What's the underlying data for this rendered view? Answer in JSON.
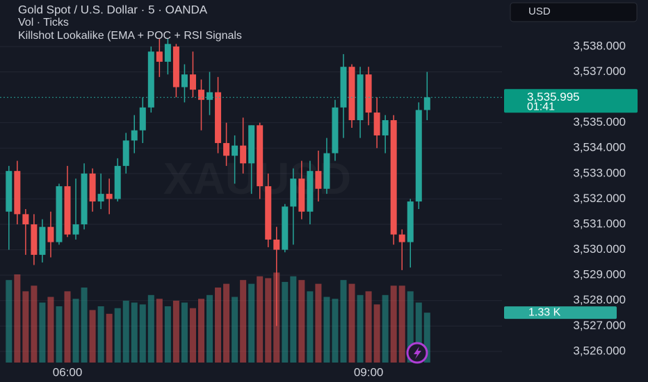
{
  "chart_data": {
    "type": "candlestick",
    "title": "Gold Spot / U.S. Dollar · 5 · OANDA",
    "indicators": [
      "Vol · Ticks",
      "Killshot Lookalike (EMA + POC + RSI Signals"
    ],
    "watermark": "XAUUSD",
    "currency": "USD",
    "categories": [
      null,
      null,
      null,
      null,
      null,
      null,
      null,
      "06:00",
      null,
      null,
      null,
      null,
      null,
      null,
      null,
      null,
      null,
      null,
      null,
      null,
      null,
      null,
      null,
      null,
      null,
      null,
      null,
      null,
      null,
      null,
      null,
      null,
      null,
      null,
      null,
      null,
      null,
      null,
      null,
      null,
      null,
      null,
      null,
      "09:00",
      null,
      null,
      null,
      null,
      null,
      null,
      null
    ],
    "open": [
      3531.5,
      3533.1,
      3531.4,
      3531.0,
      3529.8,
      3530.9,
      3530.3,
      3532.5,
      3530.6,
      3531.0,
      3533.0,
      3531.9,
      3532.2,
      3532.0,
      3533.3,
      3534.3,
      3534.7,
      3535.6,
      3537.8,
      3537.4,
      3538.0,
      3536.4,
      3536.9,
      3536.3,
      3535.9,
      3536.2,
      3534.2,
      3533.7,
      3534.1,
      3533.4,
      3534.9,
      3532.5,
      3530.4,
      3530.0,
      3531.7,
      3532.8,
      3531.5,
      3533.1,
      3532.4,
      3533.8,
      3535.6,
      3537.2,
      3535.1,
      3536.9,
      3535.4,
      3534.5,
      3535.1,
      3530.6,
      3530.3,
      3531.9,
      3535.5
    ],
    "high": [
      3533.3,
      3533.5,
      3531.6,
      3531.4,
      3531.2,
      3531.5,
      3532.6,
      3533.3,
      3532.8,
      3533.4,
      3533.2,
      3533.0,
      3532.8,
      3533.6,
      3534.6,
      3535.3,
      3536.0,
      3538.0,
      3538.3,
      3538.3,
      3538.1,
      3537.3,
      3537.8,
      3536.7,
      3537.0,
      3536.8,
      3535.0,
      3534.5,
      3535.2,
      3534.9,
      3535.0,
      3533.0,
      3530.9,
      3531.8,
      3533.2,
      3533.5,
      3533.5,
      3533.9,
      3534.4,
      3535.9,
      3537.7,
      3537.3,
      3537.2,
      3537.2,
      3536.0,
      3535.3,
      3535.3,
      3530.8,
      3532.0,
      3535.8,
      3537.0
    ],
    "low": [
      3530.0,
      3531.0,
      3529.8,
      3529.4,
      3529.5,
      3529.7,
      3530.2,
      3530.5,
      3530.4,
      3530.8,
      3531.5,
      3531.6,
      3531.4,
      3531.9,
      3533.0,
      3533.8,
      3534.2,
      3535.4,
      3536.8,
      3536.9,
      3536.0,
      3535.8,
      3536.0,
      3534.7,
      3535.3,
      3533.8,
      3533.3,
      3532.6,
      3533.0,
      3532.2,
      3532.0,
      3530.1,
      3527.0,
      3529.9,
      3530.2,
      3531.2,
      3531.0,
      3531.9,
      3532.2,
      3533.5,
      3534.4,
      3534.8,
      3534.4,
      3534.9,
      3534.0,
      3533.8,
      3530.2,
      3529.2,
      3529.3,
      3531.6,
      3535.1
    ],
    "close": [
      3533.1,
      3531.4,
      3531.0,
      3529.8,
      3530.9,
      3530.3,
      3532.5,
      3530.6,
      3531.0,
      3533.0,
      3531.9,
      3532.2,
      3532.0,
      3533.3,
      3534.3,
      3534.7,
      3535.6,
      3537.8,
      3537.4,
      3538.1,
      3536.4,
      3536.9,
      3536.3,
      3535.9,
      3536.2,
      3534.2,
      3533.7,
      3534.1,
      3533.4,
      3534.9,
      3532.5,
      3530.4,
      3530.0,
      3531.7,
      3532.8,
      3531.5,
      3533.1,
      3532.4,
      3533.8,
      3535.6,
      3537.2,
      3535.1,
      3536.9,
      3535.4,
      3534.5,
      3535.1,
      3530.6,
      3530.3,
      3531.9,
      3535.5,
      3536.0
    ],
    "volume": [
      2200,
      2350,
      1900,
      2050,
      1600,
      1750,
      1500,
      1900,
      1700,
      2000,
      1400,
      1500,
      1300,
      1450,
      1650,
      1600,
      1550,
      1800,
      1700,
      1500,
      1650,
      1600,
      1450,
      1700,
      1800,
      2000,
      2100,
      1750,
      2200,
      2100,
      2300,
      2250,
      2400,
      2150,
      2300,
      2200,
      1900,
      2100,
      1750,
      1700,
      2200,
      2100,
      1800,
      1900,
      1550,
      1800,
      2050,
      2050,
      1900,
      1600,
      1330
    ],
    "up_color": "#26a69a",
    "down_color": "#ef5350",
    "ylim": [
      3525.56,
      3539.83
    ],
    "yticks": [
      {
        "value": 3526,
        "label": "3,526.000"
      },
      {
        "value": 3527,
        "label": "3,527.000"
      },
      {
        "value": 3528,
        "label": "3,528.000"
      },
      {
        "value": 3529,
        "label": "3,529.000"
      },
      {
        "value": 3530,
        "label": "3,530.000"
      },
      {
        "value": 3531,
        "label": "3,531.000"
      },
      {
        "value": 3532,
        "label": "3,532.000"
      },
      {
        "value": 3533,
        "label": "3,533.000"
      },
      {
        "value": 3534,
        "label": "3,534.000"
      },
      {
        "value": 3535,
        "label": "3,535.000"
      },
      {
        "value": 3537,
        "label": "3,537.000"
      },
      {
        "value": 3538,
        "label": "3,538.000"
      }
    ],
    "volume_lim": [
      0,
      2500
    ],
    "last_price": {
      "value": 3535.995,
      "label": "3,535.995",
      "countdown": "01:41"
    },
    "last_volume": {
      "value": 1330,
      "label": "1.33 K"
    },
    "grid": true
  }
}
